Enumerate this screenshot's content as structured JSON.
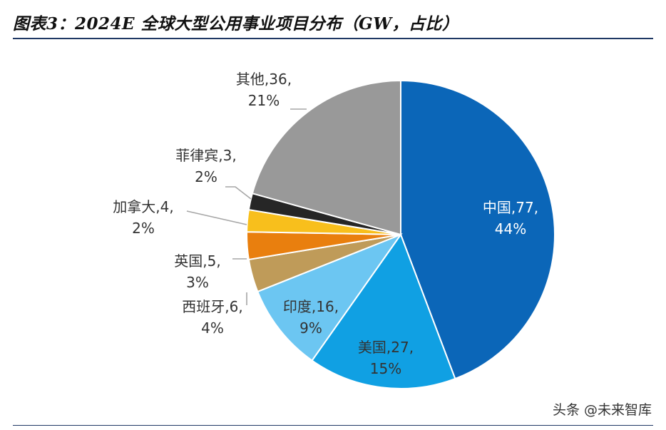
{
  "header": {
    "title": "图表3：2024E 全球大型公用事业项目分布（GW，占比）"
  },
  "watermark": {
    "text": "头条 @未来智库"
  },
  "chart_data": {
    "type": "pie",
    "title": "图表3：2024E 全球大型公用事业项目分布（GW，占比）",
    "unit": "GW",
    "slices": [
      {
        "label": "中国",
        "value": 77,
        "pct": "44%",
        "color": "#0B66B8",
        "line1": "中国,77,",
        "line2": "44%",
        "text_color": "#ffffff"
      },
      {
        "label": "美国",
        "value": 27,
        "pct": "15%",
        "color": "#10A0E3",
        "line1": "美国,27,",
        "line2": "15%",
        "text_color": "#333333"
      },
      {
        "label": "印度",
        "value": 16,
        "pct": "9%",
        "color": "#6CC6F2",
        "line1": "印度,16,",
        "line2": "9%",
        "text_color": "#333333"
      },
      {
        "label": "西班牙",
        "value": 6,
        "pct": "4%",
        "color": "#BF9B59",
        "line1": "西班牙,6,",
        "line2": "4%",
        "text_color": "#333333"
      },
      {
        "label": "英国",
        "value": 5,
        "pct": "3%",
        "color": "#E97F0E",
        "line1": "英国,5,",
        "line2": "3%",
        "text_color": "#333333"
      },
      {
        "label": "加拿大",
        "value": 4,
        "pct": "2%",
        "color": "#F8BF1C",
        "line1": "加拿大,4,",
        "line2": "2%",
        "text_color": "#333333"
      },
      {
        "label": "菲律宾",
        "value": 3,
        "pct": "2%",
        "color": "#262626",
        "line1": "菲律宾,3,",
        "line2": "2%",
        "text_color": "#333333"
      },
      {
        "label": "其他",
        "value": 36,
        "pct": "21%",
        "color": "#999999",
        "line1": "其他,36,",
        "line2": "21%",
        "text_color": "#333333"
      }
    ]
  }
}
